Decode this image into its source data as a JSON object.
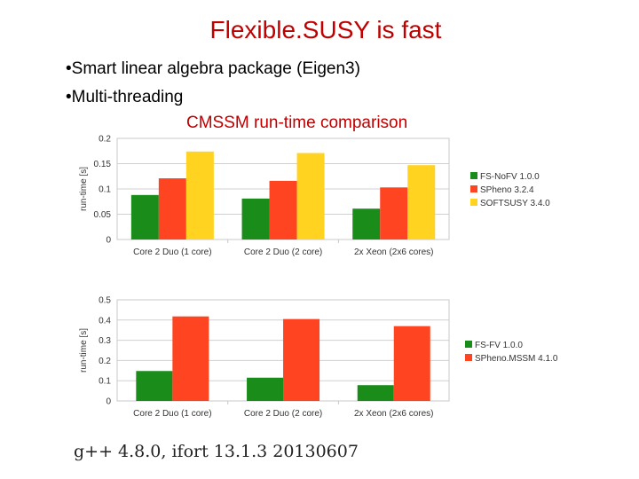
{
  "slide": {
    "title": "Flexible.SUSY is fast",
    "bullets": [
      "Smart linear algebra package (Eigen3)",
      "Multi-threading"
    ],
    "chart_heading": "CMSSM run-time comparison",
    "footer": "g++ 4.8.0,  ifort 13.1.3 20130607"
  },
  "chart_data": [
    {
      "type": "bar",
      "categories": [
        "Core 2 Duo (1 core)",
        "Core 2 Duo (2 core)",
        "2x Xeon (2x6 cores)"
      ],
      "series": [
        {
          "name": "FS-NoFV 1.0.0",
          "values": [
            0.088,
            0.081,
            0.061
          ],
          "color": "#1a8c1a"
        },
        {
          "name": "SPheno 3.2.4",
          "values": [
            0.121,
            0.116,
            0.103
          ],
          "color": "#ff4422"
        },
        {
          "name": "SOFTSUSY 3.4.0",
          "values": [
            0.174,
            0.171,
            0.147
          ],
          "color": "#ffd320"
        }
      ],
      "ylabel": "run-time [s]",
      "ylim": [
        0,
        0.2
      ],
      "yticks": [
        "0",
        "0.05",
        "0.1",
        "0.15",
        "0.2"
      ],
      "ytick_values": [
        0,
        0.05,
        0.1,
        0.15,
        0.2
      ],
      "grid": true,
      "legend": "right"
    },
    {
      "type": "bar",
      "categories": [
        "Core 2 Duo (1 core)",
        "Core 2 Duo (2 core)",
        "2x Xeon (2x6 cores)"
      ],
      "series": [
        {
          "name": "FS-FV 1.0.0",
          "values": [
            0.148,
            0.115,
            0.078
          ],
          "color": "#1a8c1a"
        },
        {
          "name": "SPheno.MSSM 4.1.0",
          "values": [
            0.418,
            0.405,
            0.37
          ],
          "color": "#ff4422"
        }
      ],
      "ylabel": "run-time [s]",
      "ylim": [
        0,
        0.5
      ],
      "yticks": [
        "0",
        "0.1",
        "0.2",
        "0.3",
        "0.4",
        "0.5"
      ],
      "ytick_values": [
        0,
        0.1,
        0.2,
        0.3,
        0.4,
        0.5
      ],
      "grid": true,
      "legend": "right"
    }
  ]
}
